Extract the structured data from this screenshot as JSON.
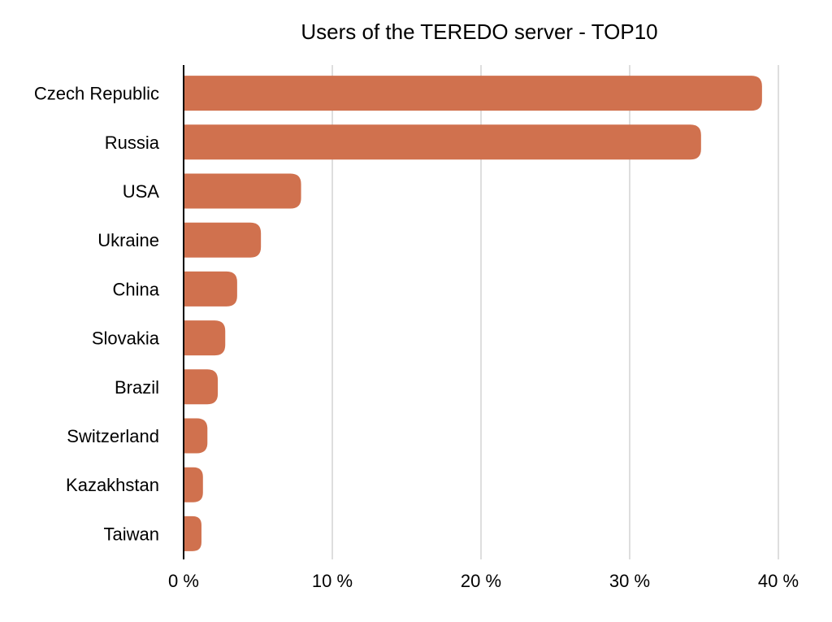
{
  "chart_data": {
    "type": "bar",
    "orientation": "horizontal",
    "title": "Users of the TEREDO server - TOP10",
    "xlabel": "",
    "ylabel": "",
    "categories": [
      "Czech Republic",
      "Russia",
      "USA",
      "Ukraine",
      "China",
      "Slovakia",
      "Brazil",
      "Switzerland",
      "Kazakhstan",
      "Taiwan"
    ],
    "values": [
      38.9,
      34.8,
      7.9,
      5.2,
      3.6,
      2.8,
      2.3,
      1.6,
      1.3,
      1.2
    ],
    "xlim": [
      0,
      40
    ],
    "xticks": [
      0,
      10,
      20,
      30,
      40
    ],
    "xtick_labels": [
      "0 %",
      "10 %",
      "20 %",
      "30 %",
      "40 %"
    ],
    "grid": "vertical",
    "legend": "none",
    "bar_color": "#D0714E"
  }
}
